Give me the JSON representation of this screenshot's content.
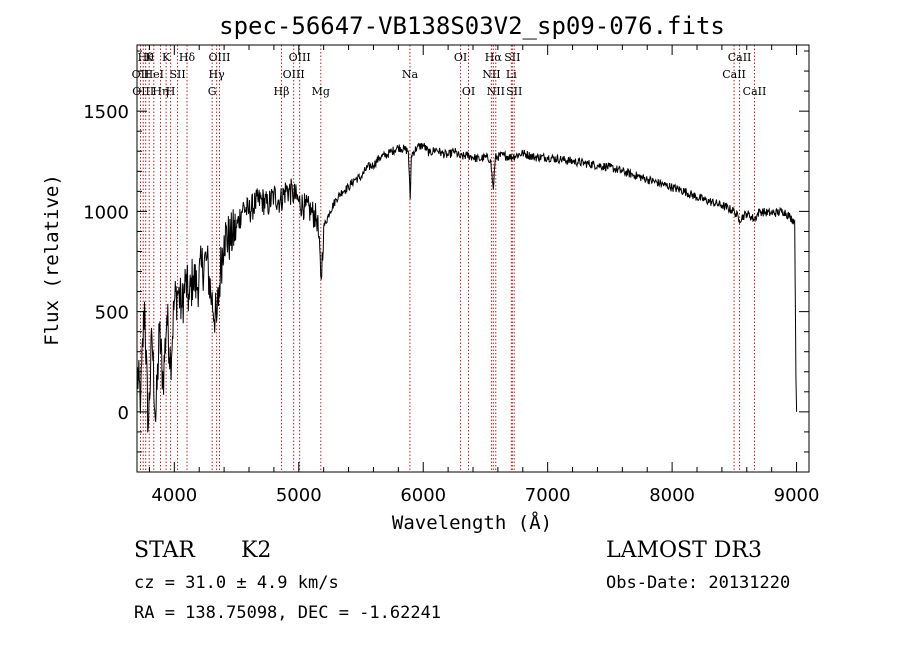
{
  "chart_data": {
    "type": "line",
    "title": "spec-56647-VB138S03V2_sp09-076.fits",
    "xlabel": "Wavelength (Å)",
    "ylabel": "Flux (relative)",
    "xlim": [
      3700,
      9100
    ],
    "ylim": [
      -300,
      1830
    ],
    "xticks": [
      4000,
      5000,
      6000,
      7000,
      8000,
      9000
    ],
    "yticks": [
      0,
      500,
      1000,
      1500
    ],
    "line_color": "#000000",
    "marker_color": "#b22222",
    "series": [
      {
        "name": "flux",
        "points": [
          [
            3700,
            200
          ],
          [
            3730,
            60
          ],
          [
            3760,
            550
          ],
          [
            3790,
            -80
          ],
          [
            3820,
            380
          ],
          [
            3850,
            -50
          ],
          [
            3880,
            400
          ],
          [
            3910,
            150
          ],
          [
            3940,
            480
          ],
          [
            3970,
            250
          ],
          [
            4000,
            550
          ],
          [
            4030,
            600
          ],
          [
            4060,
            520
          ],
          [
            4090,
            650
          ],
          [
            4120,
            560
          ],
          [
            4150,
            680
          ],
          [
            4180,
            620
          ],
          [
            4220,
            720
          ],
          [
            4260,
            760
          ],
          [
            4300,
            560
          ],
          [
            4340,
            450
          ],
          [
            4370,
            700
          ],
          [
            4400,
            880
          ],
          [
            4450,
            860
          ],
          [
            4500,
            920
          ],
          [
            4550,
            1020
          ],
          [
            4600,
            1000
          ],
          [
            4650,
            1040
          ],
          [
            4700,
            1060
          ],
          [
            4750,
            1030
          ],
          [
            4800,
            1080
          ],
          [
            4850,
            1050
          ],
          [
            4900,
            1110
          ],
          [
            4950,
            1090
          ],
          [
            5000,
            1050
          ],
          [
            5050,
            1020
          ],
          [
            5100,
            1000
          ],
          [
            5150,
            960
          ],
          [
            5180,
            660
          ],
          [
            5200,
            920
          ],
          [
            5250,
            1000
          ],
          [
            5300,
            1060
          ],
          [
            5350,
            1100
          ],
          [
            5400,
            1120
          ],
          [
            5450,
            1160
          ],
          [
            5500,
            1170
          ],
          [
            5550,
            1220
          ],
          [
            5600,
            1230
          ],
          [
            5650,
            1270
          ],
          [
            5700,
            1280
          ],
          [
            5750,
            1300
          ],
          [
            5800,
            1320
          ],
          [
            5850,
            1310
          ],
          [
            5880,
            1300
          ],
          [
            5895,
            1060
          ],
          [
            5905,
            1280
          ],
          [
            5950,
            1320
          ],
          [
            6000,
            1330
          ],
          [
            6050,
            1290
          ],
          [
            6100,
            1310
          ],
          [
            6150,
            1290
          ],
          [
            6200,
            1280
          ],
          [
            6250,
            1300
          ],
          [
            6300,
            1270
          ],
          [
            6350,
            1280
          ],
          [
            6400,
            1270
          ],
          [
            6450,
            1260
          ],
          [
            6500,
            1270
          ],
          [
            6540,
            1260
          ],
          [
            6563,
            1110
          ],
          [
            6580,
            1270
          ],
          [
            6650,
            1280
          ],
          [
            6700,
            1270
          ],
          [
            6800,
            1290
          ],
          [
            6900,
            1270
          ],
          [
            7000,
            1270
          ],
          [
            7100,
            1260
          ],
          [
            7200,
            1250
          ],
          [
            7300,
            1240
          ],
          [
            7400,
            1230
          ],
          [
            7500,
            1220
          ],
          [
            7600,
            1200
          ],
          [
            7700,
            1180
          ],
          [
            7800,
            1160
          ],
          [
            7900,
            1140
          ],
          [
            8000,
            1120
          ],
          [
            8100,
            1100
          ],
          [
            8200,
            1070
          ],
          [
            8300,
            1050
          ],
          [
            8400,
            1030
          ],
          [
            8500,
            1000
          ],
          [
            8540,
            960
          ],
          [
            8600,
            990
          ],
          [
            8662,
            960
          ],
          [
            8700,
            1000
          ],
          [
            8800,
            990
          ],
          [
            8900,
            1000
          ],
          [
            8950,
            970
          ],
          [
            8985,
            950
          ],
          [
            8995,
            180
          ],
          [
            9000,
            0
          ]
        ]
      }
    ],
    "lines": [
      {
        "wave": 3728,
        "label": "OII",
        "tier": 2
      },
      {
        "wave": 3750,
        "label": "OIII",
        "tier": 3
      },
      {
        "wave": 3770,
        "label": "Hθ",
        "tier": 1
      },
      {
        "wave": 3798,
        "label": "K",
        "tier": 1
      },
      {
        "wave": 3835,
        "label": "HeI",
        "tier": 2
      },
      {
        "wave": 3889,
        "label": "Hη",
        "tier": 3
      },
      {
        "wave": 3934,
        "label": "K",
        "tier": 1
      },
      {
        "wave": 3970,
        "label": "H",
        "tier": 3
      },
      {
        "wave": 4026,
        "label": "SII",
        "tier": 2
      },
      {
        "wave": 4102,
        "label": "Hδ",
        "tier": 1
      },
      {
        "wave": 4304,
        "label": "G",
        "tier": 3
      },
      {
        "wave": 4340,
        "label": "Hγ",
        "tier": 2
      },
      {
        "wave": 4363,
        "label": "OIII",
        "tier": 1
      },
      {
        "wave": 4861,
        "label": "Hβ",
        "tier": 3
      },
      {
        "wave": 4959,
        "label": "OIII",
        "tier": 2
      },
      {
        "wave": 5007,
        "label": "OIII",
        "tier": 1
      },
      {
        "wave": 5177,
        "label": "Mg",
        "tier": 3
      },
      {
        "wave": 5893,
        "label": "Na",
        "tier": 2
      },
      {
        "wave": 6300,
        "label": "OI",
        "tier": 1
      },
      {
        "wave": 6364,
        "label": "OI",
        "tier": 3
      },
      {
        "wave": 6548,
        "label": "NII",
        "tier": 2
      },
      {
        "wave": 6563,
        "label": "Hα",
        "tier": 1
      },
      {
        "wave": 6583,
        "label": "NII",
        "tier": 3
      },
      {
        "wave": 6708,
        "label": "Li",
        "tier": 2
      },
      {
        "wave": 6716,
        "label": "SII",
        "tier": 1
      },
      {
        "wave": 6731,
        "label": "SII",
        "tier": 3
      },
      {
        "wave": 8498,
        "label": "CaII",
        "tier": 2
      },
      {
        "wave": 8542,
        "label": "CaII",
        "tier": 1
      },
      {
        "wave": 8662,
        "label": "CaII",
        "tier": 3
      }
    ]
  },
  "info": {
    "object_class": "STAR",
    "subclass": "K2",
    "survey": "LAMOST DR3",
    "redshift": "cz = 31.0 ± 4.9 km/s",
    "obs_date": "Obs-Date: 20131220",
    "coords": "RA = 138.75098, DEC =  -1.62241"
  }
}
